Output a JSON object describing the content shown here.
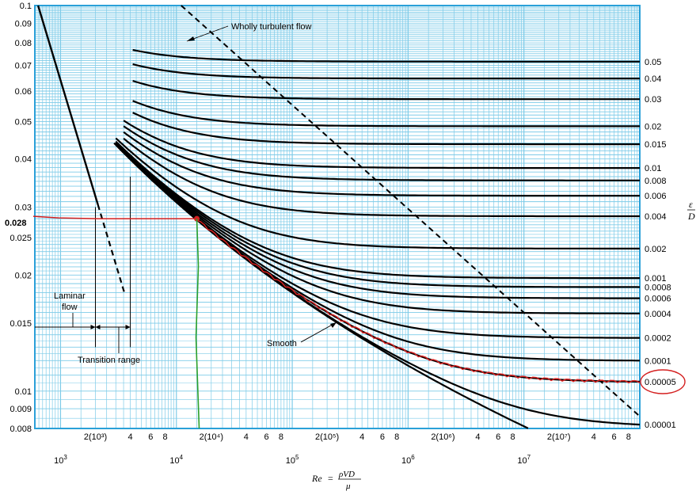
{
  "chart_data": {
    "type": "line",
    "title": "",
    "xlabel": "Re = ρVD/μ",
    "xlabel_parts": {
      "lhs": "Re",
      "eq": "=",
      "numerator": "ρVD",
      "denominator": "μ"
    },
    "ylabel": "",
    "right_label": {
      "numerator": "ε",
      "denominator": "D"
    },
    "xscale": "log",
    "yscale": "log",
    "xlim": [
      600,
      100000000
    ],
    "ylim": [
      0.008,
      0.1
    ],
    "grid": true,
    "x_major_labels": [
      {
        "x": 1000,
        "label": "10",
        "exp": "3"
      },
      {
        "x": 10000,
        "label": "10",
        "exp": "4"
      },
      {
        "x": 100000,
        "label": "10",
        "exp": "5"
      },
      {
        "x": 1000000,
        "label": "10",
        "exp": "6"
      },
      {
        "x": 10000000,
        "label": "10",
        "exp": "7"
      }
    ],
    "x_minor_labels": [
      {
        "x": 2000,
        "label": "2(10³)"
      },
      {
        "x": 4000,
        "label": "4"
      },
      {
        "x": 6000,
        "label": "6"
      },
      {
        "x": 8000,
        "label": "8"
      },
      {
        "x": 20000,
        "label": "2(10⁴)"
      },
      {
        "x": 40000,
        "label": "4"
      },
      {
        "x": 60000,
        "label": "6"
      },
      {
        "x": 80000,
        "label": "8"
      },
      {
        "x": 200000,
        "label": "2(10⁵)"
      },
      {
        "x": 400000,
        "label": "4"
      },
      {
        "x": 600000,
        "label": "6"
      },
      {
        "x": 800000,
        "label": "8"
      },
      {
        "x": 2000000,
        "label": "2(10⁶)"
      },
      {
        "x": 4000000,
        "label": "4"
      },
      {
        "x": 6000000,
        "label": "6"
      },
      {
        "x": 8000000,
        "label": "8"
      },
      {
        "x": 20000000,
        "label": "2(10⁷)"
      },
      {
        "x": 40000000,
        "label": "4"
      },
      {
        "x": 60000000,
        "label": "6"
      },
      {
        "x": 80000000,
        "label": "8"
      }
    ],
    "y_tick_labels": [
      {
        "y": 0.1,
        "label": "0.1"
      },
      {
        "y": 0.09,
        "label": "0.09"
      },
      {
        "y": 0.08,
        "label": "0.08"
      },
      {
        "y": 0.07,
        "label": "0.07"
      },
      {
        "y": 0.06,
        "label": "0.06"
      },
      {
        "y": 0.05,
        "label": "0.05"
      },
      {
        "y": 0.04,
        "label": "0.04"
      },
      {
        "y": 0.03,
        "label": "0.03"
      },
      {
        "y": 0.025,
        "label": "0.025"
      },
      {
        "y": 0.02,
        "label": "0.02"
      },
      {
        "y": 0.015,
        "label": "0.015"
      },
      {
        "y": 0.01,
        "label": "0.01"
      },
      {
        "y": 0.009,
        "label": "0.009"
      },
      {
        "y": 0.008,
        "label": "0.008"
      }
    ],
    "roughness_labels": [
      "0.05",
      "0.04",
      "0.03",
      "0.02",
      "0.015",
      "0.01",
      "0.008",
      "0.006",
      "0.004",
      "0.002",
      "0.001",
      "0.0008",
      "0.0006",
      "0.0004",
      "0.0002",
      "0.0001",
      "0.00005",
      "0.00001"
    ],
    "roughness_values": [
      0.05,
      0.04,
      0.03,
      0.02,
      0.015,
      0.01,
      0.008,
      0.006,
      0.004,
      0.002,
      0.001,
      0.0008,
      0.0006,
      0.0004,
      0.0002,
      0.0001,
      5e-05,
      1e-05
    ],
    "annotations": {
      "wholly_turbulent": "Wholly turbulent flow",
      "laminar": [
        "Laminar",
        "flow"
      ],
      "transition": "Transition range",
      "smooth": "Smooth"
    },
    "highlight": {
      "value_label": "0.028",
      "friction_factor": 0.028,
      "reynolds": 15000,
      "circled_roughness": "0.00005",
      "red_color": "#d42020",
      "green_color": "#2ca02c"
    },
    "colors": {
      "grid": "#7ecbe8",
      "frame": "#2aa0d8",
      "curves": "#000000"
    }
  }
}
